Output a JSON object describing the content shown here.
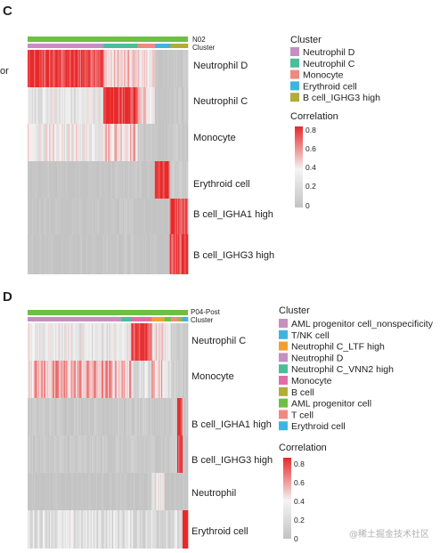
{
  "watermark": "@稀土掘金技术社区",
  "colors": {
    "low": "#c3c3c3",
    "mid": "#f4f4f4",
    "high": "#e8282a",
    "annot_top": "#6fbe45"
  },
  "chart_data": [
    {
      "type": "heatmap",
      "panel": "C",
      "title": "",
      "cutoff_text": "or",
      "annotation_top_label": "N02",
      "annotation_cluster_label": "Cluster",
      "rows": [
        "Neutrophil D",
        "Neutrophil C",
        "Monocyte",
        "Erythroid cell",
        "B cell_IGHA1 high",
        "B cell_IGHG3 high"
      ],
      "column_groups": [
        {
          "cluster": "Neutrophil D",
          "fraction": 0.475
        },
        {
          "cluster": "Neutrophil C",
          "fraction": 0.21
        },
        {
          "cluster": "Monocyte",
          "fraction": 0.11
        },
        {
          "cluster": "Erythroid cell",
          "fraction": 0.095
        },
        {
          "cluster": "B cell_IGHG3 high",
          "fraction": 0.11
        }
      ],
      "legend": {
        "title": "Cluster",
        "entries": [
          {
            "label": "Neutrophil D",
            "color": "#c58fc1"
          },
          {
            "label": "Neutrophil C",
            "color": "#4bbd99"
          },
          {
            "label": "Monocyte",
            "color": "#f08a80"
          },
          {
            "label": "Erythroid cell",
            "color": "#3fb4e4"
          },
          {
            "label": "B cell_IGHG3 high",
            "color": "#b1ad36"
          }
        ]
      },
      "correlation_scale": {
        "title": "Correlation",
        "min": 0,
        "max": 0.85,
        "ticks": [
          "0.8",
          "0.6",
          "0.4",
          "0.2",
          "0"
        ]
      },
      "blocks": [
        [
          0.8,
          0.45,
          0.4,
          0.0,
          0.05
        ],
        [
          0.3,
          0.82,
          0.45,
          0.0,
          0.05
        ],
        [
          0.35,
          0.5,
          0.05,
          0.0,
          0.05
        ],
        [
          0.0,
          0.02,
          0.0,
          0.85,
          0.05
        ],
        [
          0.0,
          0.02,
          0.0,
          0.0,
          0.82
        ],
        [
          0.0,
          0.02,
          0.0,
          0.0,
          0.82
        ]
      ]
    },
    {
      "type": "heatmap",
      "panel": "D",
      "title": "",
      "annotation_top_label": "P04-Post",
      "annotation_cluster_label": "Cluster",
      "rows": [
        "Neutrophil C",
        "Monocyte",
        "B cell_IGHA1 high",
        "B cell_IGHG3 high",
        "Neutrophil",
        "Erythroid cell"
      ],
      "column_groups": [
        {
          "cluster": "Neutrophil D",
          "fraction": 0.585
        },
        {
          "cluster": "Neutrophil C_VNN2 high",
          "fraction": 0.06
        },
        {
          "cluster": "Monocyte",
          "fraction": 0.13
        },
        {
          "cluster": "Neutrophil C_LTF high",
          "fraction": 0.08
        },
        {
          "cluster": "AML progenitor cell",
          "fraction": 0.04
        },
        {
          "cluster": "T cell",
          "fraction": 0.04
        },
        {
          "cluster": "B cell",
          "fraction": 0.03
        },
        {
          "cluster": "Erythroid cell",
          "fraction": 0.035
        }
      ],
      "legend": {
        "title": "Cluster",
        "entries": [
          {
            "label": "AML progenitor cell_nonspecificity",
            "color": "#c58fc1"
          },
          {
            "label": "T/NK cell",
            "color": "#3fb4e4"
          },
          {
            "label": "Neutrophil C_LTF high",
            "color": "#f0a033"
          },
          {
            "label": "Neutrophil D",
            "color": "#c58fc1"
          },
          {
            "label": "Neutrophil C_VNN2 high",
            "color": "#4bbd99"
          },
          {
            "label": "Monocyte",
            "color": "#e06fa8"
          },
          {
            "label": "B cell",
            "color": "#b1ad36"
          },
          {
            "label": "AML progenitor cell",
            "color": "#6fbe45"
          },
          {
            "label": "T cell",
            "color": "#f08a80"
          },
          {
            "label": "Erythroid cell",
            "color": "#3fb4e4"
          }
        ]
      },
      "correlation_scale": {
        "title": "Correlation",
        "min": 0,
        "max": 0.85,
        "ticks": [
          "0.8",
          "0.6",
          "0.4",
          "0.2",
          "0"
        ]
      },
      "blocks": [
        [
          0.3,
          0.3,
          0.78,
          0.4,
          0.3,
          0.1,
          0.1,
          0.05
        ],
        [
          0.55,
          0.5,
          0.25,
          0.5,
          0.3,
          0.1,
          0.1,
          0.05
        ],
        [
          0.05,
          0.05,
          0.05,
          0.05,
          0.05,
          0.1,
          0.82,
          0.05
        ],
        [
          0.05,
          0.05,
          0.05,
          0.05,
          0.05,
          0.1,
          0.82,
          0.05
        ],
        [
          0.0,
          0.0,
          0.0,
          0.3,
          0.0,
          0.0,
          0.0,
          0.0
        ],
        [
          0.25,
          0.25,
          0.2,
          0.2,
          0.2,
          0.2,
          0.2,
          0.85
        ]
      ]
    }
  ]
}
